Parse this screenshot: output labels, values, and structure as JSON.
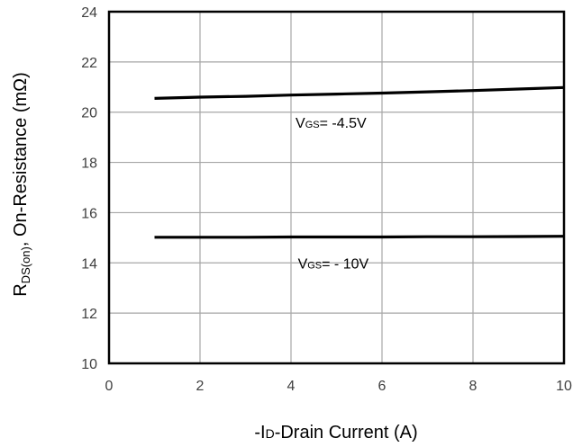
{
  "chart_data": {
    "type": "line",
    "xlabel": {
      "prefix": "-I",
      "sub": "D",
      "suffix": "-Drain Current (A)"
    },
    "ylabel": {
      "prefix": "R",
      "sub": "DS(on)",
      "suffix": ",  On-Resistance (mΩ)"
    },
    "xlim": [
      0,
      10
    ],
    "ylim": [
      10,
      24
    ],
    "xticks": [
      0,
      2,
      4,
      6,
      8,
      10
    ],
    "yticks": [
      10,
      12,
      14,
      16,
      18,
      20,
      22,
      24
    ],
    "grid": true,
    "series": [
      {
        "label_prefix": "V",
        "label_sub": "GS",
        "label_suffix": "= -4.5V",
        "label_at": [
          4.1,
          19.6
        ],
        "x": [
          1,
          2,
          3,
          4,
          5,
          6,
          7,
          8,
          9,
          10
        ],
        "y": [
          20.55,
          20.6,
          20.63,
          20.68,
          20.72,
          20.76,
          20.81,
          20.86,
          20.92,
          20.98
        ]
      },
      {
        "label_prefix": "V",
        "label_sub": "GS",
        "label_suffix": "= - 10V",
        "label_at": [
          4.15,
          14.0
        ],
        "x": [
          1,
          2,
          3,
          4,
          5,
          6,
          7,
          8,
          9,
          10
        ],
        "y": [
          15.02,
          15.02,
          15.02,
          15.03,
          15.03,
          15.03,
          15.04,
          15.04,
          15.05,
          15.06
        ]
      }
    ],
    "colors": {
      "line": "#000000",
      "grid": "#a6a6a6",
      "frame": "#000000",
      "tick_text": "#404040"
    }
  }
}
